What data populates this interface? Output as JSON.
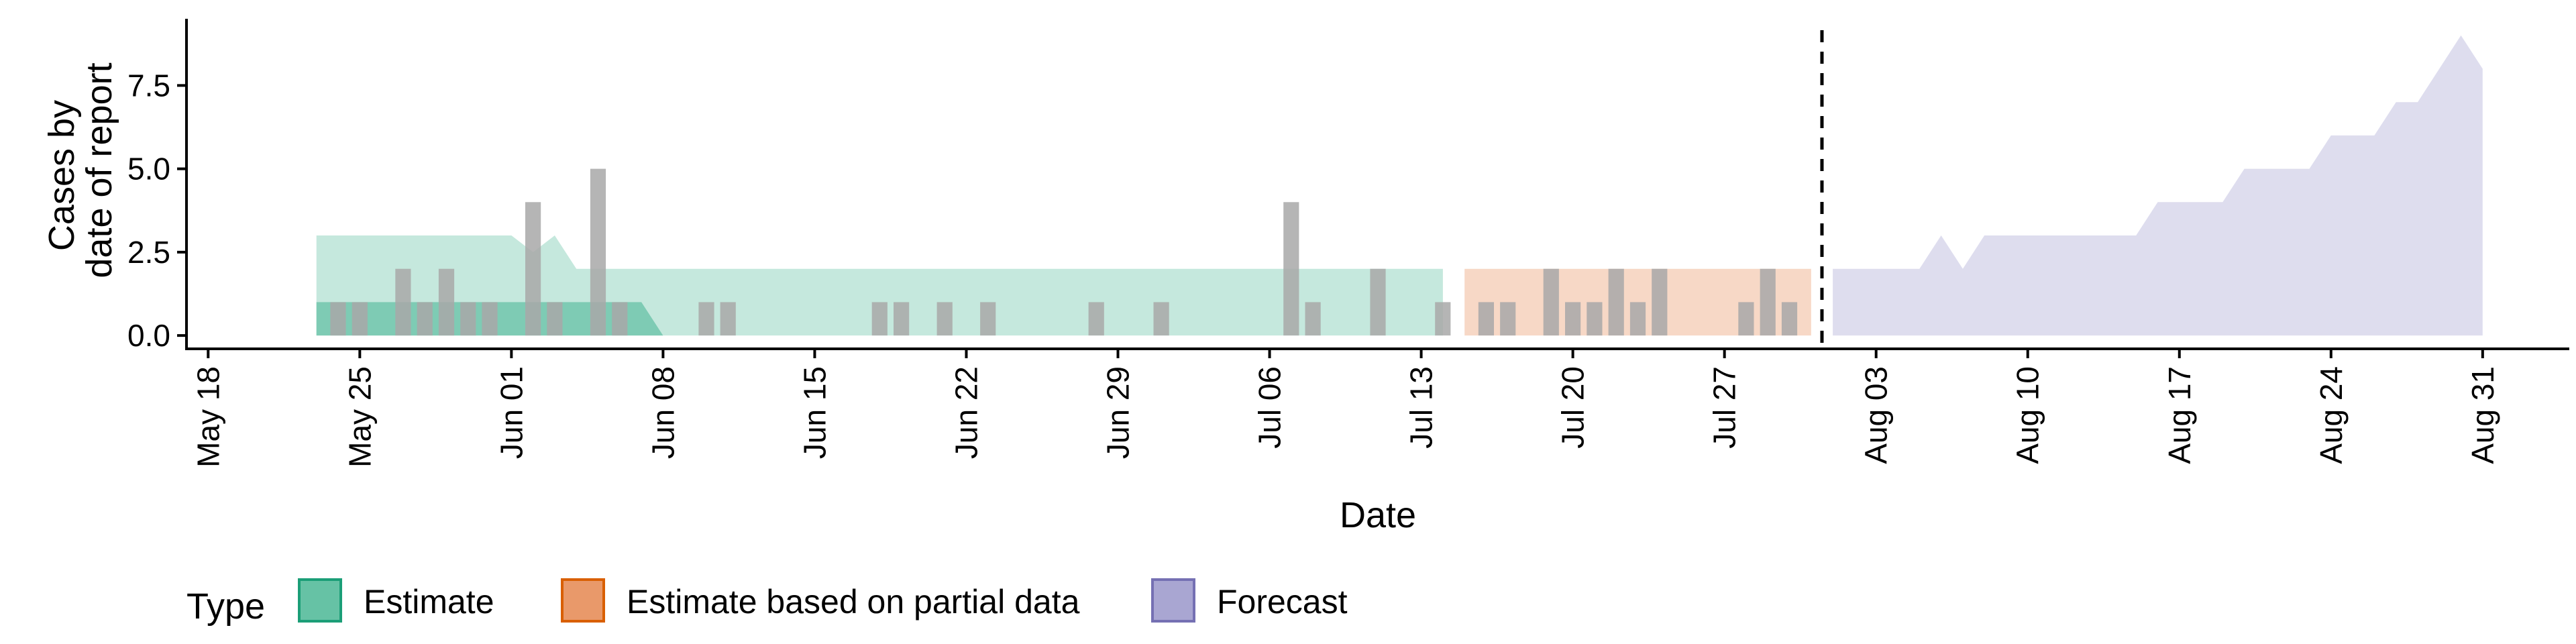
{
  "chart_data": {
    "type": "area",
    "xlabel": "Date",
    "ylabel_lines": [
      "Cases by",
      "date of report"
    ],
    "x_ticks": [
      "May 18",
      "May 25",
      "Jun 01",
      "Jun 08",
      "Jun 15",
      "Jun 22",
      "Jun 29",
      "Jul 06",
      "Jul 13",
      "Jul 20",
      "Jul 27",
      "Aug 03",
      "Aug 10",
      "Aug 17",
      "Aug 24",
      "Aug 31"
    ],
    "x_tick_dates": [
      "2020-05-18",
      "2020-05-25",
      "2020-06-01",
      "2020-06-08",
      "2020-06-15",
      "2020-06-22",
      "2020-06-29",
      "2020-07-06",
      "2020-07-13",
      "2020-07-20",
      "2020-07-27",
      "2020-08-03",
      "2020-08-10",
      "2020-08-17",
      "2020-08-24",
      "2020-08-31"
    ],
    "xlim": [
      "2020-05-17",
      "2020-09-04"
    ],
    "y_ticks": [
      "0.0",
      "2.5",
      "5.0",
      "7.5"
    ],
    "y_tick_values": [
      0,
      2.5,
      5,
      7.5
    ],
    "ylim": [
      -0.4,
      9.5
    ],
    "forecast_start": "2020-08-01",
    "legend": {
      "title": "Type",
      "position": "bottom-left",
      "items": [
        {
          "label": "Estimate",
          "fill": "#66c2a5",
          "stroke": "#1b9e77"
        },
        {
          "label": "Estimate based on partial data",
          "fill": "#e9996a",
          "stroke": "#d95f02"
        },
        {
          "label": "Forecast",
          "fill": "#a9a6d2",
          "stroke": "#7570b3"
        }
      ]
    },
    "colors": {
      "estimate": "#66c2a5",
      "partial": "#e9996a",
      "forecast": "#a9a6d2",
      "bars": "#a8a8a8"
    },
    "series": [
      {
        "name": "Estimate",
        "color": "#66c2a5",
        "outer": [
          {
            "date": "2020-05-23",
            "lower": 0,
            "upper": 3
          },
          {
            "date": "2020-06-01",
            "lower": 0,
            "upper": 3
          },
          {
            "date": "2020-06-02",
            "lower": 0,
            "upper": 2.5
          },
          {
            "date": "2020-06-03",
            "lower": 0,
            "upper": 3
          },
          {
            "date": "2020-06-04",
            "lower": 0,
            "upper": 2
          },
          {
            "date": "2020-07-14",
            "lower": 0,
            "upper": 2
          }
        ],
        "inner": [
          {
            "date": "2020-05-23",
            "lower": 0,
            "upper": 1
          },
          {
            "date": "2020-06-07",
            "lower": 0,
            "upper": 1
          },
          {
            "date": "2020-06-08",
            "lower": 0,
            "upper": 0
          }
        ]
      },
      {
        "name": "Estimate based on partial data",
        "color": "#e9996a",
        "outer": [
          {
            "date": "2020-07-15",
            "lower": 0,
            "upper": 2
          },
          {
            "date": "2020-07-31",
            "lower": 0,
            "upper": 2
          }
        ]
      },
      {
        "name": "Forecast",
        "color": "#a9a6d2",
        "outer": [
          {
            "date": "2020-08-01",
            "lower": 0,
            "upper": 2
          },
          {
            "date": "2020-08-05",
            "lower": 0,
            "upper": 2
          },
          {
            "date": "2020-08-06",
            "lower": 0,
            "upper": 3
          },
          {
            "date": "2020-08-07",
            "lower": 0,
            "upper": 2
          },
          {
            "date": "2020-08-08",
            "lower": 0,
            "upper": 3
          },
          {
            "date": "2020-08-15",
            "lower": 0,
            "upper": 3
          },
          {
            "date": "2020-08-16",
            "lower": 0,
            "upper": 4
          },
          {
            "date": "2020-08-19",
            "lower": 0,
            "upper": 4
          },
          {
            "date": "2020-08-20",
            "lower": 0,
            "upper": 5
          },
          {
            "date": "2020-08-23",
            "lower": 0,
            "upper": 5
          },
          {
            "date": "2020-08-24",
            "lower": 0,
            "upper": 6
          },
          {
            "date": "2020-08-26",
            "lower": 0,
            "upper": 6
          },
          {
            "date": "2020-08-27",
            "lower": 0,
            "upper": 7
          },
          {
            "date": "2020-08-28",
            "lower": 0,
            "upper": 7
          },
          {
            "date": "2020-08-30",
            "lower": 0,
            "upper": 9
          },
          {
            "date": "2020-08-31",
            "lower": 0,
            "upper": 8
          }
        ]
      }
    ],
    "reported_cases": [
      {
        "date": "2020-05-24",
        "cases": 1
      },
      {
        "date": "2020-05-25",
        "cases": 1
      },
      {
        "date": "2020-05-27",
        "cases": 2
      },
      {
        "date": "2020-05-28",
        "cases": 1
      },
      {
        "date": "2020-05-29",
        "cases": 2
      },
      {
        "date": "2020-05-30",
        "cases": 1
      },
      {
        "date": "2020-05-31",
        "cases": 1
      },
      {
        "date": "2020-06-02",
        "cases": 4
      },
      {
        "date": "2020-06-03",
        "cases": 1
      },
      {
        "date": "2020-06-05",
        "cases": 5
      },
      {
        "date": "2020-06-06",
        "cases": 1
      },
      {
        "date": "2020-06-10",
        "cases": 1
      },
      {
        "date": "2020-06-11",
        "cases": 1
      },
      {
        "date": "2020-06-18",
        "cases": 1
      },
      {
        "date": "2020-06-19",
        "cases": 1
      },
      {
        "date": "2020-06-21",
        "cases": 1
      },
      {
        "date": "2020-06-23",
        "cases": 1
      },
      {
        "date": "2020-06-28",
        "cases": 1
      },
      {
        "date": "2020-07-01",
        "cases": 1
      },
      {
        "date": "2020-07-07",
        "cases": 4
      },
      {
        "date": "2020-07-08",
        "cases": 1
      },
      {
        "date": "2020-07-11",
        "cases": 2
      },
      {
        "date": "2020-07-14",
        "cases": 1
      },
      {
        "date": "2020-07-16",
        "cases": 1
      },
      {
        "date": "2020-07-17",
        "cases": 1
      },
      {
        "date": "2020-07-19",
        "cases": 2
      },
      {
        "date": "2020-07-20",
        "cases": 1
      },
      {
        "date": "2020-07-21",
        "cases": 1
      },
      {
        "date": "2020-07-22",
        "cases": 2
      },
      {
        "date": "2020-07-23",
        "cases": 1
      },
      {
        "date": "2020-07-24",
        "cases": 2
      },
      {
        "date": "2020-07-28",
        "cases": 1
      },
      {
        "date": "2020-07-29",
        "cases": 2
      },
      {
        "date": "2020-07-30",
        "cases": 1
      }
    ]
  }
}
